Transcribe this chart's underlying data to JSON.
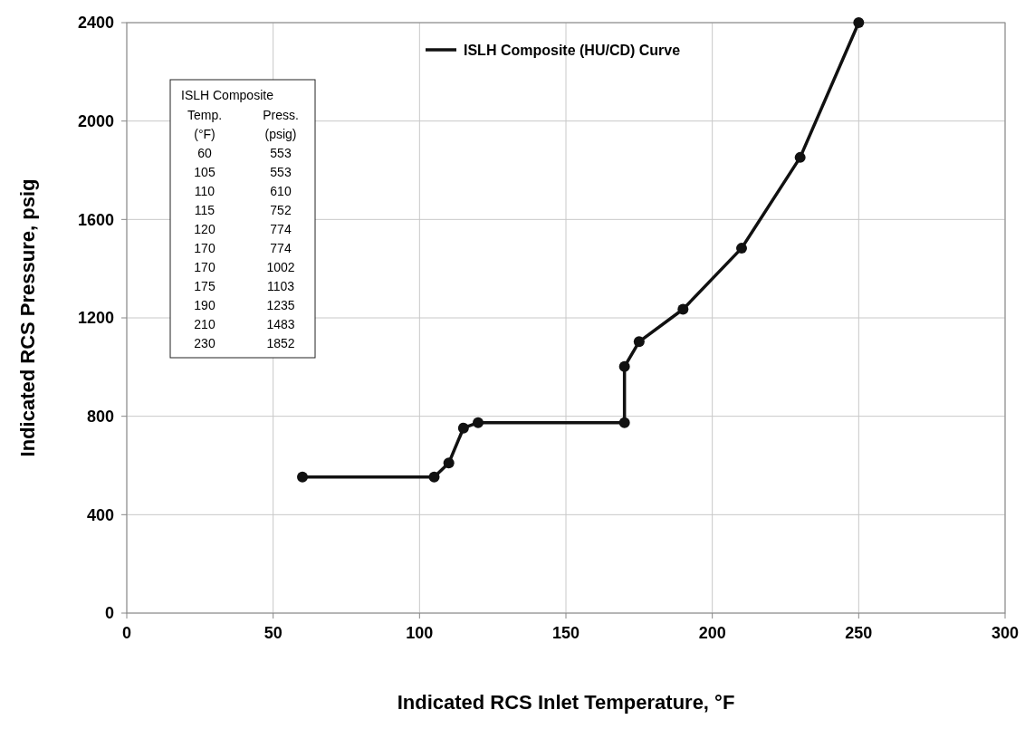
{
  "chart_data": {
    "type": "line",
    "xlabel": "Indicated RCS Inlet Temperature, °F",
    "ylabel": "Indicated RCS Pressure, psig",
    "xlim": [
      0,
      300
    ],
    "xticks": [
      0,
      50,
      100,
      150,
      200,
      250,
      300
    ],
    "ylim": [
      0,
      2400
    ],
    "yticks": [
      0,
      400,
      800,
      1200,
      1600,
      2000,
      2400
    ],
    "grid": true,
    "legend": "top",
    "marker": "circle",
    "line_style": "solid",
    "annotations": [
      "ISLH Composite",
      "Temp.",
      "Press.",
      "(°F)",
      "(psig)",
      "60",
      "553",
      "105",
      "553",
      "110",
      "610",
      "115",
      "752",
      "120",
      "774",
      "170",
      "774",
      "170",
      "1002",
      "175",
      "1103",
      "190",
      "1235",
      "210",
      "1483",
      "230",
      "1852"
    ],
    "series": [
      {
        "name": "ISLH Composite (HU/CD) Curve",
        "color": "#111111",
        "x": [
          60,
          105,
          110,
          115,
          120,
          170,
          170,
          175,
          190,
          210,
          230,
          250
        ],
        "values": [
          553,
          553,
          610,
          752,
          774,
          774,
          1002,
          1103,
          1235,
          1483,
          1852,
          2400
        ]
      }
    ]
  }
}
